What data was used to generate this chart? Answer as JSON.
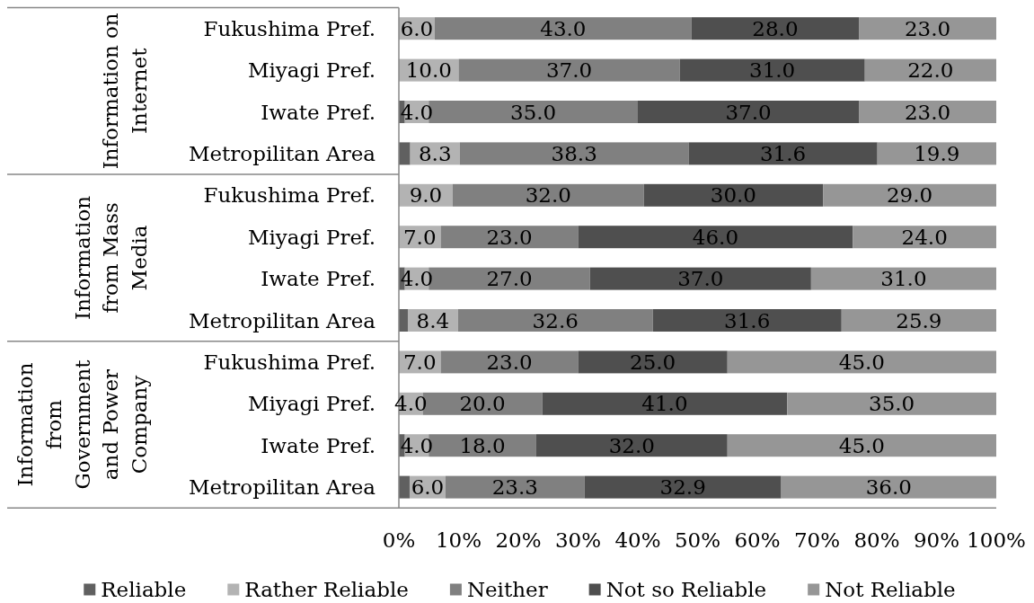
{
  "chart_data": {
    "type": "bar",
    "orientation": "horizontal",
    "stacked": true,
    "categories": [
      "Fukushima Pref.",
      "Miyagi Pref.",
      "Iwate Pref.",
      "Metropilitan Area",
      "Fukushima Pref.",
      "Miyagi Pref.",
      "Iwate Pref.",
      "Metropilitan Area",
      "Fukushima Pref.",
      "Miyagi Pref.",
      "Iwate Pref.",
      "Metropilitan Area"
    ],
    "annotations": [
      "Information on Internet",
      "Information from Mass Media",
      "Information from Government and Power Company"
    ],
    "xlim": [
      0,
      100
    ],
    "xticks": [
      {
        "value": 0,
        "label": "0%"
      },
      {
        "value": 10,
        "label": "10%"
      },
      {
        "value": 20,
        "label": "20%"
      },
      {
        "value": 30,
        "label": "30%"
      },
      {
        "value": 40,
        "label": "40%"
      },
      {
        "value": 50,
        "label": "50%"
      },
      {
        "value": 60,
        "label": "60%"
      },
      {
        "value": 70,
        "label": "70%"
      },
      {
        "value": 80,
        "label": "80%"
      },
      {
        "value": 90,
        "label": "90%"
      },
      {
        "value": 100,
        "label": "100%"
      }
    ],
    "legend": "bottom",
    "series": [
      {
        "name": "Reliable",
        "color": "#606060",
        "values": [
          0,
          0,
          1,
          1.9,
          0,
          0,
          1,
          1.5,
          0,
          0,
          1,
          1.8
        ]
      },
      {
        "name": "Rather Reliable",
        "color": "#b3b3b3",
        "values": [
          6,
          10,
          4,
          8.3,
          9,
          7,
          4,
          8.4,
          7,
          4,
          4,
          6
        ],
        "value_labels": [
          "6.0",
          "10.0",
          "4.0",
          "8.3",
          "9.0",
          "7.0",
          "4.0",
          "8.4",
          "7.0",
          "4.0",
          "4.0",
          "6.0"
        ]
      },
      {
        "name": "Neither",
        "color": "#808080",
        "values": [
          43,
          37,
          35,
          38.3,
          32,
          23,
          27,
          32.6,
          23,
          20,
          18,
          23.3
        ],
        "value_labels": [
          "43.0",
          "37.0",
          "35.0",
          "38.3",
          "32.0",
          "23.0",
          "27.0",
          "32.6",
          "23.0",
          "20.0",
          "18.0",
          "23.3"
        ]
      },
      {
        "name": "Not so Reliable",
        "color": "#4f4f4f",
        "values": [
          28,
          31,
          37,
          31.6,
          30,
          46,
          37,
          31.6,
          25,
          41,
          32,
          32.9
        ],
        "value_labels": [
          "28.0",
          "31.0",
          "37.0",
          "31.6",
          "30.0",
          "46.0",
          "37.0",
          "31.6",
          "25.0",
          "41.0",
          "32.0",
          "32.9"
        ]
      },
      {
        "name": "Not Reliable",
        "color": "#969696",
        "values": [
          23,
          22,
          23,
          19.9,
          29,
          24,
          31,
          25.9,
          45,
          35,
          45,
          36
        ],
        "value_labels": [
          "23.0",
          "22.0",
          "23.0",
          "19.9",
          "29.0",
          "24.0",
          "31.0",
          "25.9",
          "45.0",
          "35.0",
          "45.0",
          "36.0"
        ]
      }
    ]
  }
}
